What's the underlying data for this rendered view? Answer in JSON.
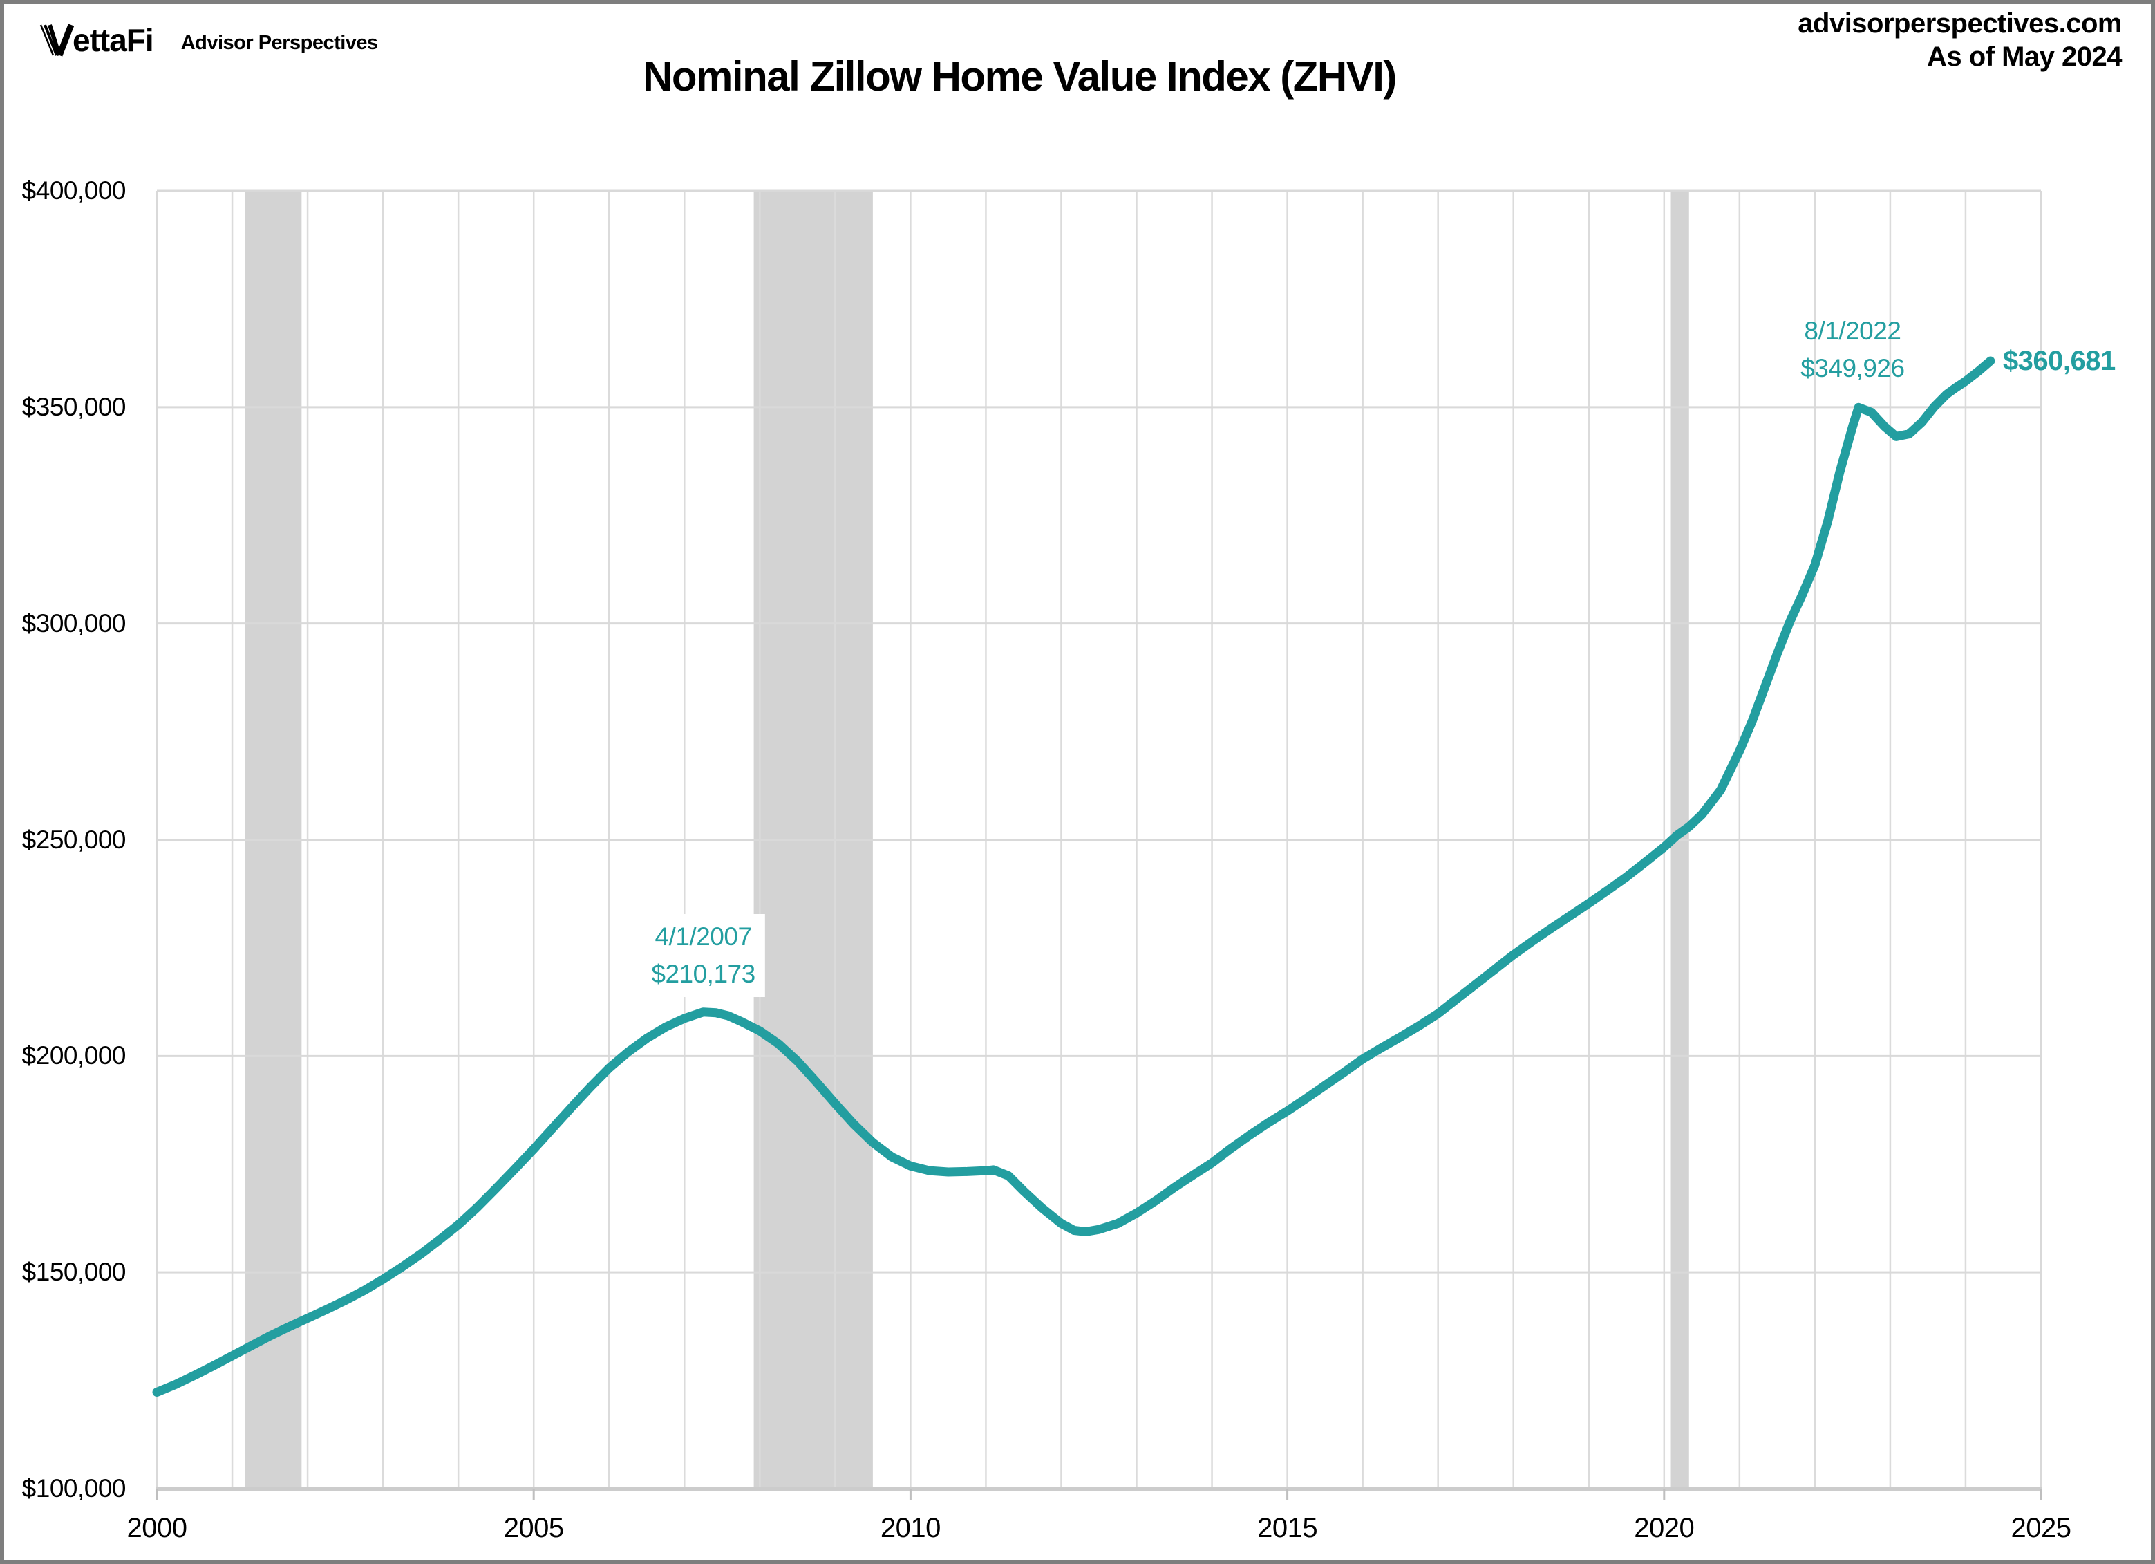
{
  "header": {
    "logo_text": "ettaFi",
    "logo_full_name": "VettaFi",
    "logo_subtext": "Advisor Perspectives",
    "site": "advisorperspectives.com",
    "as_of": "As of May 2024"
  },
  "title": "Nominal Zillow Home Value Index (ZHVI)",
  "colors": {
    "line": "#239EA0",
    "annotation_text": "#239EA0",
    "recession_band": "#D3D3D3",
    "h_grid": "#D9D9D9",
    "v_grid": "#DBDBDB",
    "plot_border": "#D9D9D9",
    "axis_line": "#CCCCCC",
    "tick": "#BFBFBF",
    "text": "#000000",
    "frame_border": "#7E7E7E"
  },
  "chart_data": {
    "type": "line",
    "title": "Nominal Zillow Home Value Index (ZHVI)",
    "xlabel": "",
    "ylabel": "",
    "x_range": [
      2000,
      2025
    ],
    "y_range": [
      100000,
      400000
    ],
    "grid": true,
    "legend": "none",
    "x_ticks": [
      {
        "value": 2000,
        "label": "2000"
      },
      {
        "value": 2005,
        "label": "2005"
      },
      {
        "value": 2010,
        "label": "2010"
      },
      {
        "value": 2015,
        "label": "2015"
      },
      {
        "value": 2020,
        "label": "2020"
      },
      {
        "value": 2025,
        "label": "2025"
      }
    ],
    "y_ticks": [
      {
        "value": 100000,
        "label": "$100,000"
      },
      {
        "value": 150000,
        "label": "$150,000"
      },
      {
        "value": 200000,
        "label": "$200,000"
      },
      {
        "value": 250000,
        "label": "$250,000"
      },
      {
        "value": 300000,
        "label": "$300,000"
      },
      {
        "value": 350000,
        "label": "$350,000"
      },
      {
        "value": 400000,
        "label": "$400,000"
      }
    ],
    "recession_bands": [
      {
        "start": 2001.17,
        "end": 2001.92
      },
      {
        "start": 2007.92,
        "end": 2009.5
      },
      {
        "start": 2020.08,
        "end": 2020.33
      }
    ],
    "series": [
      {
        "name": "Zillow Home Value Index",
        "points": [
          [
            2000.0,
            122300
          ],
          [
            2000.25,
            124100
          ],
          [
            2000.5,
            126200
          ],
          [
            2000.75,
            128400
          ],
          [
            2001.0,
            130700
          ],
          [
            2001.25,
            133000
          ],
          [
            2001.5,
            135300
          ],
          [
            2001.75,
            137400
          ],
          [
            2002.0,
            139400
          ],
          [
            2002.25,
            141400
          ],
          [
            2002.5,
            143500
          ],
          [
            2002.75,
            145800
          ],
          [
            2003.0,
            148400
          ],
          [
            2003.25,
            151200
          ],
          [
            2003.5,
            154200
          ],
          [
            2003.75,
            157500
          ],
          [
            2004.0,
            161000
          ],
          [
            2004.25,
            165000
          ],
          [
            2004.5,
            169400
          ],
          [
            2004.75,
            173900
          ],
          [
            2005.0,
            178500
          ],
          [
            2005.25,
            183300
          ],
          [
            2005.5,
            188100
          ],
          [
            2005.75,
            192800
          ],
          [
            2006.0,
            197200
          ],
          [
            2006.25,
            200900
          ],
          [
            2006.5,
            204100
          ],
          [
            2006.75,
            206700
          ],
          [
            2007.0,
            208700
          ],
          [
            2007.25,
            210173
          ],
          [
            2007.42,
            210000
          ],
          [
            2007.58,
            209300
          ],
          [
            2007.75,
            208000
          ],
          [
            2008.0,
            205800
          ],
          [
            2008.25,
            202800
          ],
          [
            2008.5,
            198800
          ],
          [
            2008.75,
            194000
          ],
          [
            2009.0,
            189000
          ],
          [
            2009.25,
            184200
          ],
          [
            2009.5,
            180000
          ],
          [
            2009.75,
            176700
          ],
          [
            2010.0,
            174600
          ],
          [
            2010.25,
            173500
          ],
          [
            2010.5,
            173200
          ],
          [
            2010.75,
            173300
          ],
          [
            2011.0,
            173500
          ],
          [
            2011.1,
            173700
          ],
          [
            2011.3,
            172300
          ],
          [
            2011.5,
            168800
          ],
          [
            2011.75,
            164800
          ],
          [
            2012.0,
            161300
          ],
          [
            2012.17,
            159700
          ],
          [
            2012.33,
            159400
          ],
          [
            2012.5,
            159900
          ],
          [
            2012.75,
            161300
          ],
          [
            2013.0,
            163700
          ],
          [
            2013.25,
            166500
          ],
          [
            2013.5,
            169600
          ],
          [
            2013.75,
            172500
          ],
          [
            2014.0,
            175300
          ],
          [
            2014.25,
            178600
          ],
          [
            2014.5,
            181700
          ],
          [
            2014.75,
            184600
          ],
          [
            2015.0,
            187300
          ],
          [
            2015.25,
            190200
          ],
          [
            2015.5,
            193200
          ],
          [
            2015.75,
            196200
          ],
          [
            2016.0,
            199300
          ],
          [
            2016.25,
            201900
          ],
          [
            2016.5,
            204400
          ],
          [
            2016.75,
            207000
          ],
          [
            2017.0,
            209800
          ],
          [
            2017.25,
            213200
          ],
          [
            2017.5,
            216600
          ],
          [
            2017.75,
            220000
          ],
          [
            2018.0,
            223400
          ],
          [
            2018.25,
            226500
          ],
          [
            2018.5,
            229500
          ],
          [
            2018.75,
            232400
          ],
          [
            2019.0,
            235300
          ],
          [
            2019.25,
            238300
          ],
          [
            2019.5,
            241400
          ],
          [
            2019.75,
            244800
          ],
          [
            2020.0,
            248300
          ],
          [
            2020.17,
            251000
          ],
          [
            2020.33,
            253000
          ],
          [
            2020.5,
            255800
          ],
          [
            2020.75,
            261500
          ],
          [
            2021.0,
            270500
          ],
          [
            2021.17,
            277500
          ],
          [
            2021.33,
            285000
          ],
          [
            2021.5,
            293000
          ],
          [
            2021.67,
            300500
          ],
          [
            2021.83,
            306500
          ],
          [
            2022.0,
            313500
          ],
          [
            2022.17,
            323500
          ],
          [
            2022.33,
            335000
          ],
          [
            2022.5,
            345500
          ],
          [
            2022.58,
            349926
          ],
          [
            2022.75,
            348800
          ],
          [
            2022.92,
            345600
          ],
          [
            2023.08,
            343200
          ],
          [
            2023.25,
            343800
          ],
          [
            2023.42,
            346500
          ],
          [
            2023.58,
            350000
          ],
          [
            2023.75,
            353000
          ],
          [
            2023.87,
            354500
          ],
          [
            2024.0,
            356000
          ],
          [
            2024.17,
            358300
          ],
          [
            2024.33,
            360681
          ]
        ]
      }
    ],
    "annotations": [
      {
        "id": "peak-2007",
        "date": "4/1/2007",
        "value_label": "$210,173",
        "year": 2007.25,
        "value": 210173,
        "boxed": true
      },
      {
        "id": "peak-2022",
        "date": "8/1/2022",
        "value_label": "$349,926",
        "year": 2022.5,
        "value": 349926,
        "boxed": false
      },
      {
        "id": "latest",
        "label": "$360,681",
        "year": 2024.33,
        "value": 360681,
        "bold": true
      }
    ]
  }
}
